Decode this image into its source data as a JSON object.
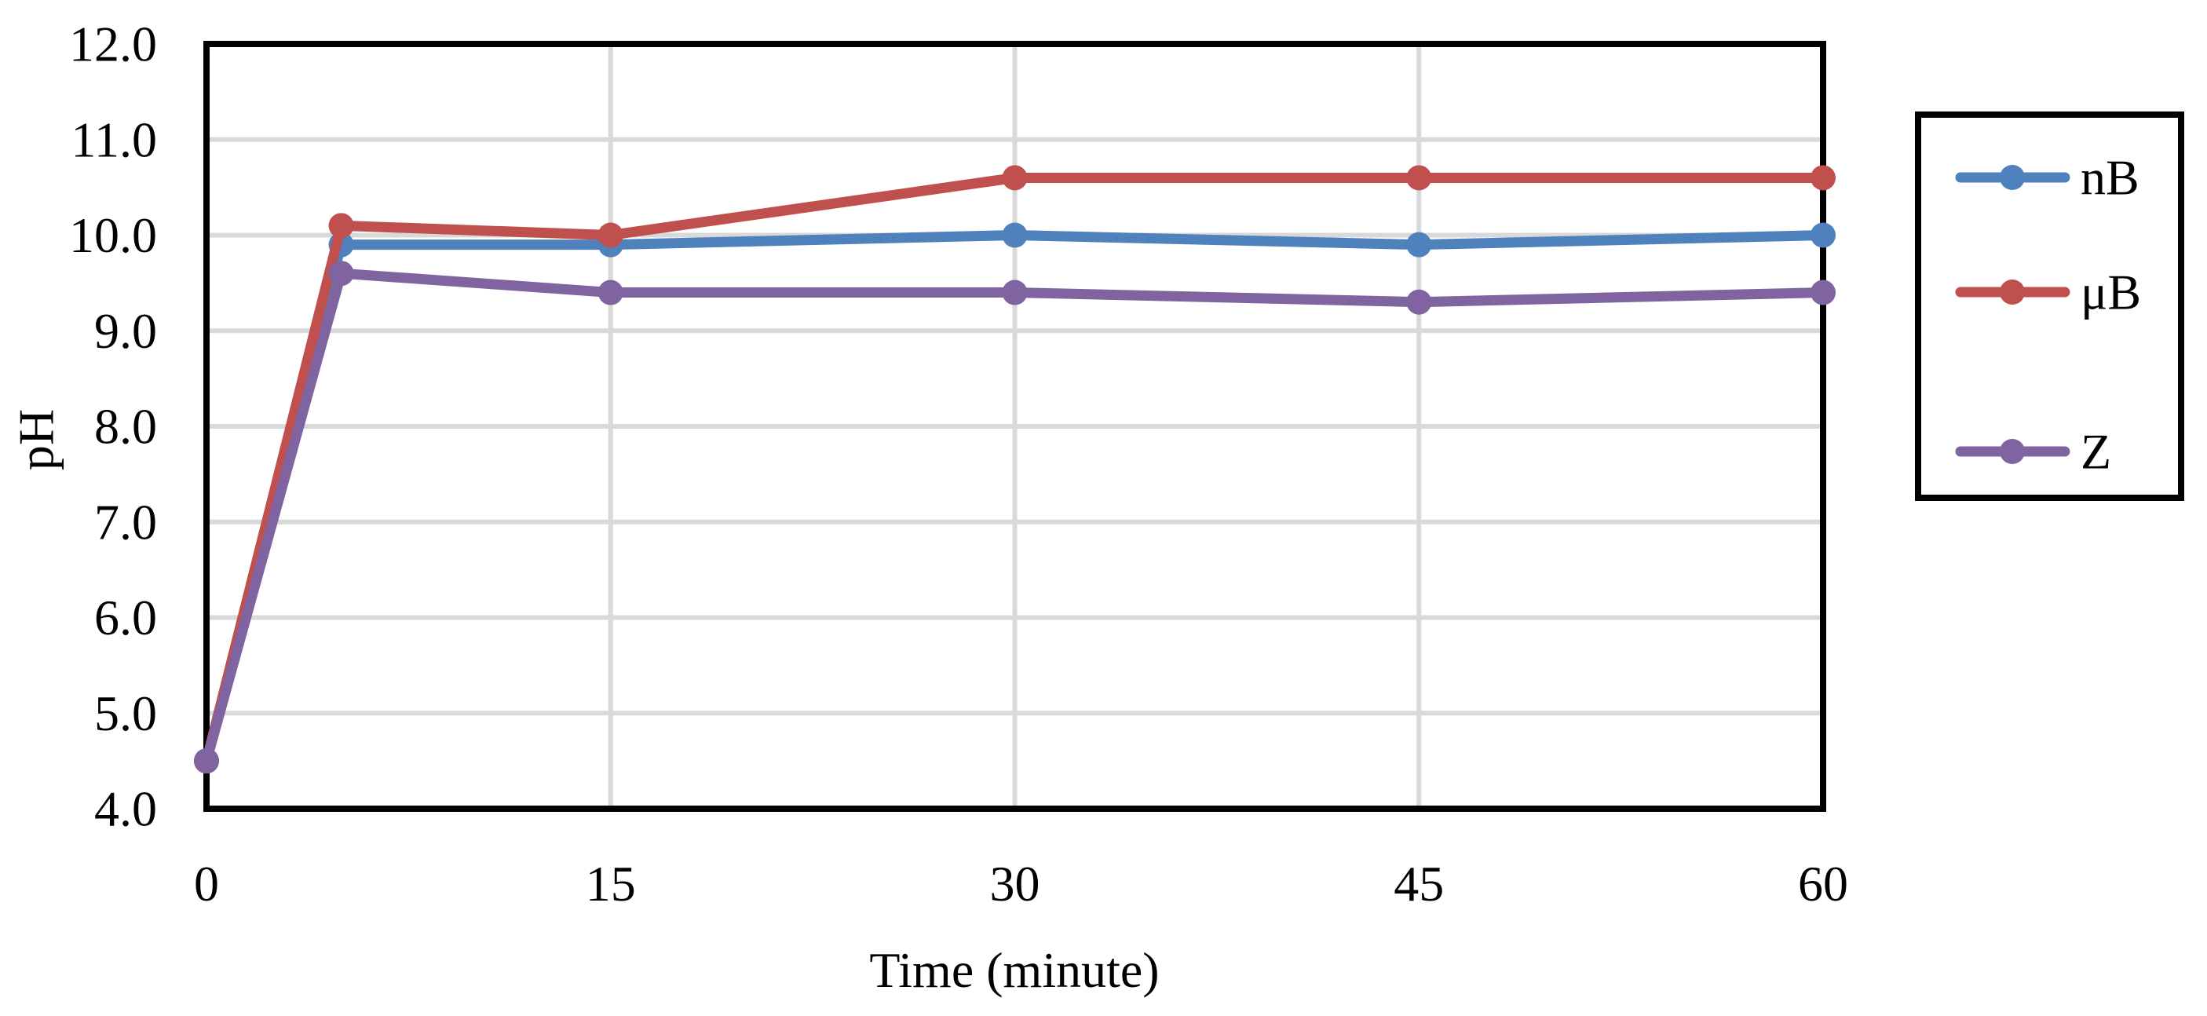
{
  "chart_data": {
    "type": "line",
    "title": "",
    "xlabel": "Time (minute)",
    "ylabel": "pH",
    "x": [
      0,
      5,
      15,
      30,
      45,
      60
    ],
    "series": [
      {
        "name": "nB",
        "color": "#4F81BD",
        "values": [
          4.5,
          9.9,
          9.9,
          10.0,
          9.9,
          10.0
        ]
      },
      {
        "name": "μB",
        "color": "#C0504D",
        "values": [
          4.5,
          10.1,
          10.0,
          10.6,
          10.6,
          10.6
        ]
      },
      {
        "name": "Z",
        "color": "#8064A2",
        "values": [
          4.5,
          9.6,
          9.4,
          9.4,
          9.3,
          9.4
        ]
      }
    ],
    "xlim": [
      0,
      60
    ],
    "ylim": [
      4.0,
      12.0
    ],
    "xticks": [
      0,
      15,
      30,
      45,
      60
    ],
    "xtick_labels": [
      "0",
      "15",
      "30",
      "45",
      "60"
    ],
    "yticks": [
      4,
      5,
      6,
      7,
      8,
      9,
      10,
      11,
      12
    ],
    "ytick_labels": [
      "4.0",
      "5.0",
      "6.0",
      "7.0",
      "8.0",
      "9.0",
      "10.0",
      "11.0",
      "12.0"
    ],
    "grid": {
      "on": true,
      "color": "#D9D9D9",
      "horizontal_lines": [
        5,
        6,
        7,
        8,
        9,
        10,
        11
      ],
      "vertical_lines": [
        15,
        30,
        45
      ]
    },
    "frame_color": "#000000",
    "background": "#FFFFFF",
    "marker": "circle",
    "legend": {
      "position": "right",
      "border_color": "#000000",
      "entries": [
        "nB",
        "μB",
        "Z"
      ]
    }
  }
}
